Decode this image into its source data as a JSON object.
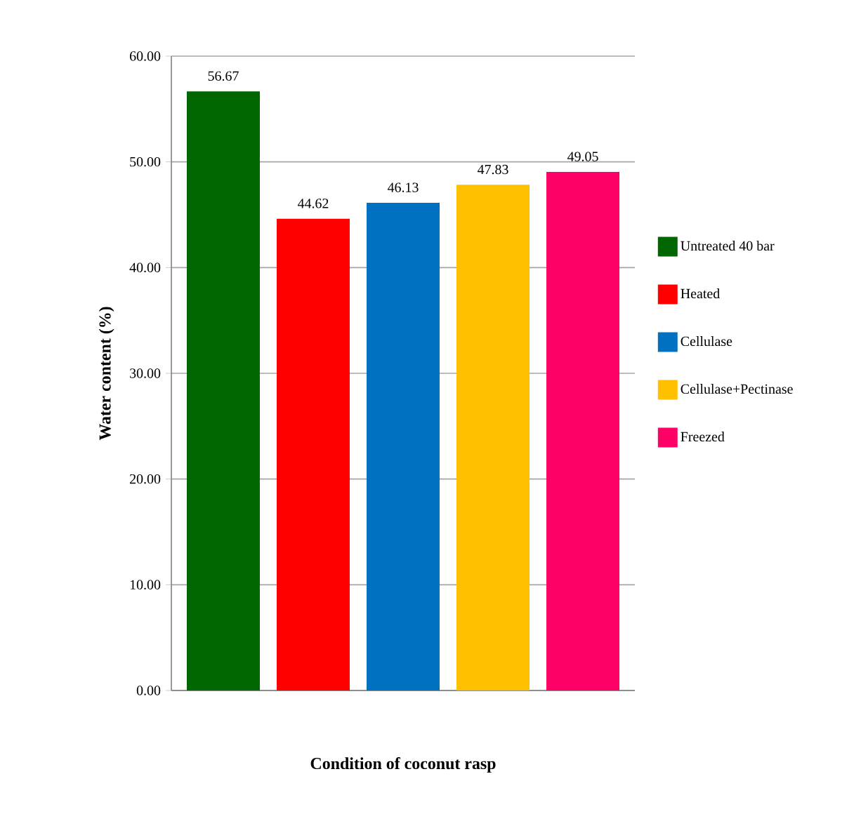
{
  "chart_data": {
    "type": "bar",
    "xlabel": "Condition of coconut rasp",
    "ylabel": "Water content (%)",
    "categories": [
      null
    ],
    "series": [
      {
        "name": "Untreated 40 bar",
        "color": "#006600",
        "values": [
          56.67
        ]
      },
      {
        "name": "Heated",
        "color": "#ff0000",
        "values": [
          44.62
        ]
      },
      {
        "name": "Cellulase",
        "color": "#0070c0",
        "values": [
          46.13
        ]
      },
      {
        "name": "Cellulase+Pectinase",
        "color": "#ffc000",
        "values": [
          47.83
        ]
      },
      {
        "name": "Freezed",
        "color": "#ff0066",
        "values": [
          49.05
        ]
      }
    ],
    "ylim": [
      0,
      60
    ],
    "yticks": [
      {
        "value": 0,
        "label": "0.00"
      },
      {
        "value": 10,
        "label": "10.00"
      },
      {
        "value": 20,
        "label": "20.00"
      },
      {
        "value": 30,
        "label": "30.00"
      },
      {
        "value": 40,
        "label": "40.00"
      },
      {
        "value": 50,
        "label": "50.00"
      },
      {
        "value": 60,
        "label": "60.00"
      }
    ],
    "grid": "y",
    "legend": "right",
    "data_labels": true
  }
}
